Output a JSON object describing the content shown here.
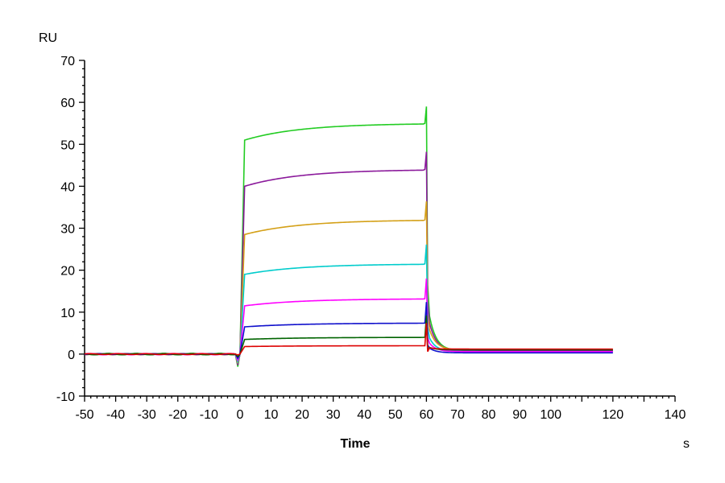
{
  "chart_data": {
    "type": "line",
    "title": "",
    "xlabel": "Time",
    "xunit": "s",
    "ylabel": "RU",
    "xlim": [
      -50,
      140
    ],
    "ylim": [
      -10,
      70
    ],
    "x_ticks": [
      -50,
      -40,
      -30,
      -20,
      -10,
      0,
      10,
      20,
      30,
      40,
      50,
      60,
      70,
      80,
      90,
      100,
      120,
      140
    ],
    "y_ticks": [
      -10,
      0,
      10,
      20,
      30,
      40,
      50,
      60,
      70
    ],
    "grid": false,
    "legend": "none",
    "series": [
      {
        "color": "#22cc22",
        "plateau": 55,
        "initial": 51,
        "end_dissociation": 0.8
      },
      {
        "color": "#8b1a9b",
        "plateau": 44,
        "initial": 40,
        "end_dissociation": 0.8
      },
      {
        "color": "#d4a017",
        "plateau": 32,
        "initial": 28.5,
        "end_dissociation": 1.0
      },
      {
        "color": "#00cccc",
        "plateau": 21.5,
        "initial": 19,
        "end_dissociation": 0.6
      },
      {
        "color": "#ff00ff",
        "plateau": 13.2,
        "initial": 11.5,
        "end_dissociation": 0.6
      },
      {
        "color": "#1010cc",
        "plateau": 7.4,
        "initial": 6.5,
        "end_dissociation": 0.3
      },
      {
        "color": "#006400",
        "plateau": 4.0,
        "initial": 3.5,
        "end_dissociation": 1.0
      },
      {
        "color": "#dd0000",
        "plateau": 2.0,
        "initial": 1.8,
        "end_dissociation": 1.2
      }
    ],
    "association_start": 0,
    "dissociation_start": 60,
    "baseline_start": -50,
    "end_time": 120
  }
}
